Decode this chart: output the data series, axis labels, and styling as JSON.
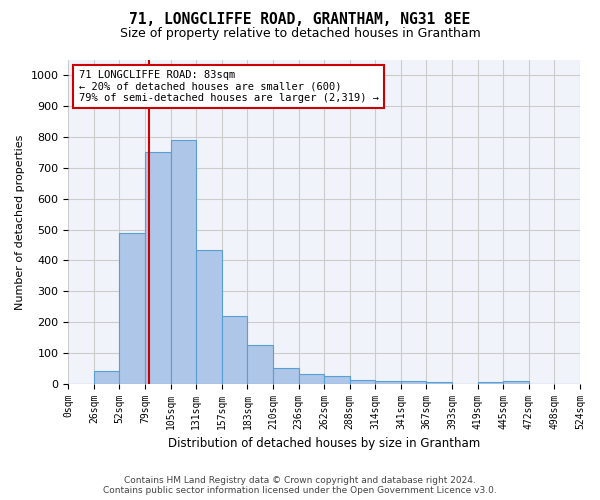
{
  "title": "71, LONGCLIFFE ROAD, GRANTHAM, NG31 8EE",
  "subtitle": "Size of property relative to detached houses in Grantham",
  "xlabel": "Distribution of detached houses by size in Grantham",
  "ylabel": "Number of detached properties",
  "bin_labels": [
    "0sqm",
    "26sqm",
    "52sqm",
    "79sqm",
    "105sqm",
    "131sqm",
    "157sqm",
    "183sqm",
    "210sqm",
    "236sqm",
    "262sqm",
    "288sqm",
    "314sqm",
    "341sqm",
    "367sqm",
    "393sqm",
    "419sqm",
    "445sqm",
    "472sqm",
    "498sqm",
    "524sqm"
  ],
  "bar_heights": [
    0,
    40,
    490,
    750,
    790,
    435,
    220,
    125,
    50,
    30,
    25,
    12,
    10,
    10,
    5,
    0,
    5,
    10,
    0,
    0
  ],
  "bar_color": "#aec6e8",
  "bar_edge_color": "#5a9fd4",
  "property_sqm": 83,
  "property_line_label": "71 LONGCLIFFE ROAD: 83sqm",
  "annotation_line1": "← 20% of detached houses are smaller (600)",
  "annotation_line2": "79% of semi-detached houses are larger (2,319) →",
  "annotation_box_color": "#ffffff",
  "annotation_box_edge": "#cc0000",
  "vline_color": "#cc0000",
  "ylim": [
    0,
    1050
  ],
  "yticks": [
    0,
    100,
    200,
    300,
    400,
    500,
    600,
    700,
    800,
    900,
    1000
  ],
  "grid_color": "#cccccc",
  "background_color": "#f0f4fa",
  "footer_line1": "Contains HM Land Registry data © Crown copyright and database right 2024.",
  "footer_line2": "Contains public sector information licensed under the Open Government Licence v3.0."
}
